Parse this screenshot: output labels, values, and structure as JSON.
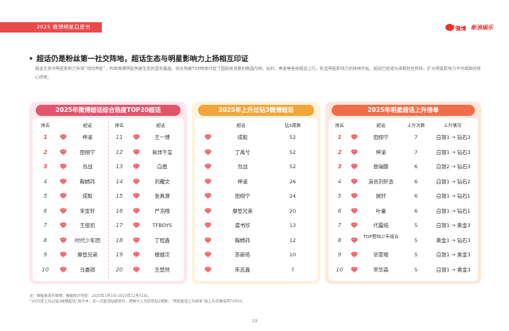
{
  "header": {
    "tab": "2025 微博明星白皮书",
    "logo_weibo": "微博",
    "logo_sina": "新浪娱乐"
  },
  "headline": "超话仍是粉丝第一社交阵地，超话生态与明星影响力上扬相互印证",
  "paragraph": "超话生态与明星影响力实现“双向奔赴”，构筑微博明星热度生态的坚实基座。综合热度TOP榜单印证了国民级流量的稳固内核；钻石、黄金等各级超话上行，彰显明星影响力的持续外延。超话已经成为承载粉丝热情、扩大明星影响力不可或缺的核心阵地。",
  "colors": {
    "pink": "#e2546c",
    "gold": "#f2a53a",
    "orange": "#ef6e49",
    "gem": "#e9404a"
  },
  "icons": {
    "gem": "diamond-icon"
  },
  "panel1": {
    "title": "2025年微博超话综合热度TOP20超话",
    "headers": {
      "rank": "排名",
      "name": "超话"
    },
    "left": [
      {
        "rank": "1",
        "name": "梓渝"
      },
      {
        "rank": "2",
        "name": "田栩宁"
      },
      {
        "rank": "3",
        "name": "肖战"
      },
      {
        "rank": "4",
        "name": "鞠婧祎"
      },
      {
        "rank": "5",
        "name": "成毅"
      },
      {
        "rank": "6",
        "name": "宋亚轩"
      },
      {
        "rank": "7",
        "name": "王俊凯"
      },
      {
        "rank": "8",
        "name": "时代少年团"
      },
      {
        "rank": "9",
        "name": "摩登兄弟"
      },
      {
        "rank": "10",
        "name": "马嘉祺"
      }
    ],
    "right": [
      {
        "rank": "11",
        "name": "王一博"
      },
      {
        "rank": "12",
        "name": "易烊千玺"
      },
      {
        "rank": "13",
        "name": "白鹿"
      },
      {
        "rank": "14",
        "name": "刘耀文"
      },
      {
        "rank": "15",
        "name": "张真源"
      },
      {
        "rank": "16",
        "name": "严浩翔"
      },
      {
        "rank": "17",
        "name": "TFBOYS"
      },
      {
        "rank": "18",
        "name": "丁程鑫"
      },
      {
        "rank": "19",
        "name": "檀健次"
      },
      {
        "rank": "20",
        "name": "王楚然"
      }
    ]
  },
  "panel2": {
    "title": "2025年上升过钻3微博超话",
    "headers": {
      "name": "超话",
      "weeks": "钻3周数"
    },
    "rows": [
      {
        "name": "成毅",
        "weeks": "52"
      },
      {
        "name": "丁禹兮",
        "weeks": "52"
      },
      {
        "name": "肖战",
        "weeks": "52"
      },
      {
        "name": "梓渝",
        "weeks": "26"
      },
      {
        "name": "田栩宁",
        "weeks": "24"
      },
      {
        "name": "摩登兄弟",
        "weeks": "20"
      },
      {
        "name": "虞书欣",
        "weeks": "13"
      },
      {
        "name": "鞠婧祎",
        "weeks": "12"
      },
      {
        "name": "苏新皓",
        "weeks": "10"
      },
      {
        "name": "朱志鑫",
        "weeks": "7"
      }
    ]
  },
  "panel3": {
    "title": "2025年明星超话上升榜单",
    "headers": {
      "rank": "排名",
      "name": "超话",
      "times": "上升次数",
      "status": "上升情况"
    },
    "rows": [
      {
        "rank": "1",
        "name": "田栩宁",
        "times": "7",
        "status": "白银1 → 钻石3"
      },
      {
        "rank": "2",
        "name": "梓渝",
        "times": "7",
        "status": "白银1 → 钻石3"
      },
      {
        "rank": "3",
        "name": "敖瑞鹏",
        "times": "6",
        "status": "白银2 → 钻石3"
      },
      {
        "rank": "4",
        "name": "演员刘轩丞",
        "times": "6",
        "status": "白银1 → 钻石2"
      },
      {
        "rank": "5",
        "name": "展轩",
        "times": "6",
        "status": "白银1 → 钻石1"
      },
      {
        "rank": "6",
        "name": "叶童",
        "times": "6",
        "status": "白银1 → 钻石1"
      },
      {
        "rank": "7",
        "name": "代露娃",
        "times": "5",
        "status": "白银1 → 黄金3"
      },
      {
        "rank": "8",
        "name": "TOP登陆少年组合",
        "times": "5",
        "status": "黄金1 → 钻石3"
      },
      {
        "rank": "9",
        "name": "毕雯珺",
        "times": "5",
        "status": "白银1 → 黄金3"
      },
      {
        "rank": "10",
        "name": "常华森",
        "times": "5",
        "status": "白银1 → 黄金3"
      }
    ]
  },
  "notes": {
    "line1": "注：数据来源于微博；数据统计时间：2025年1月1日-2025年12月31日。",
    "line2": "“2025年上升过钻3微博超话”统计中，仅一次超话钻级晋升，周数计入为近年钻3周数；“明星超话上升榜单”按上升次数排序TOP10。"
  },
  "page": {
    "number": "19"
  }
}
